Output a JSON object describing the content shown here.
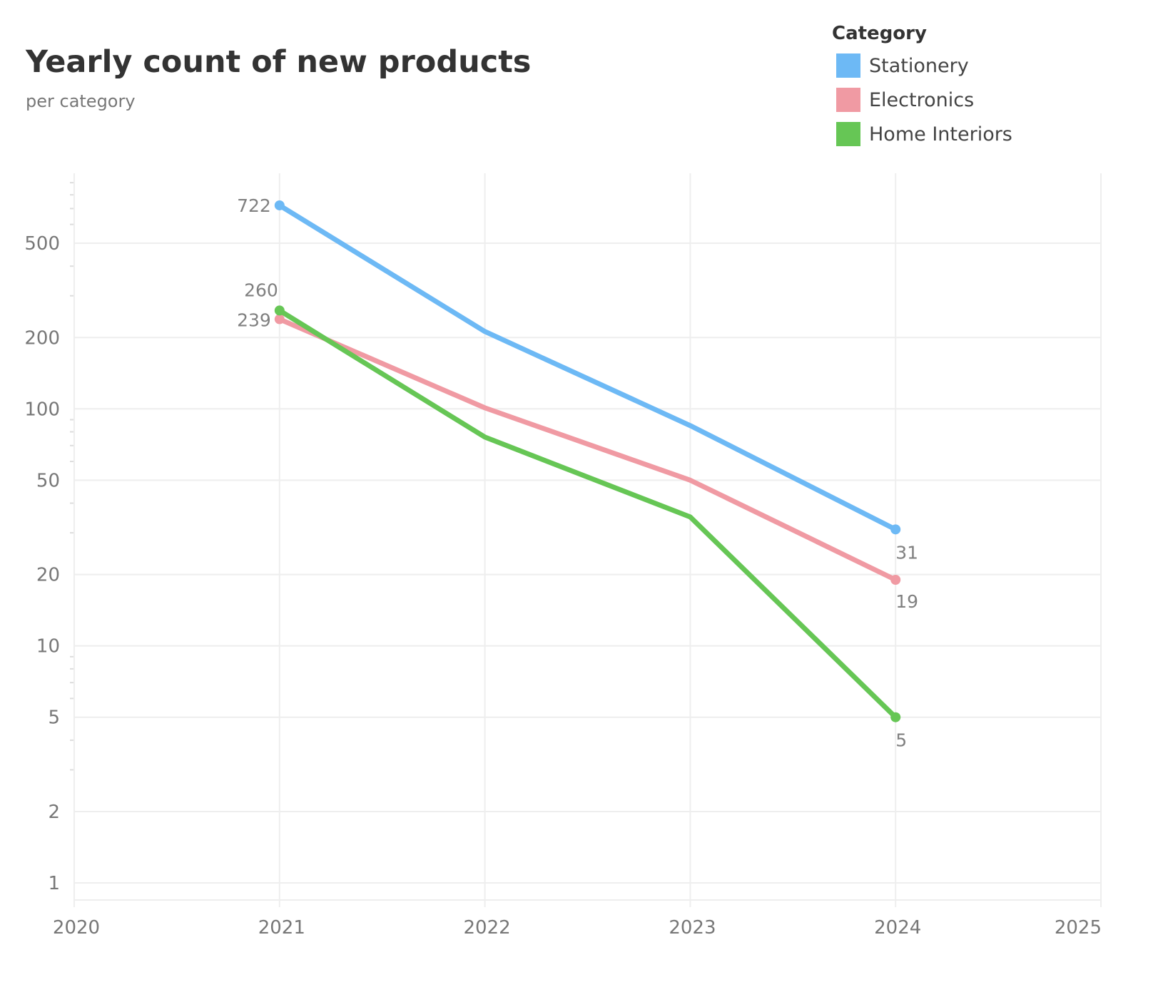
{
  "chart_data": {
    "type": "line",
    "title": "Yearly count of new products",
    "subtitle": "per category",
    "xlabel": "",
    "ylabel": "",
    "x": [
      2021,
      2022,
      2023,
      2024
    ],
    "xlim": [
      2020,
      2025
    ],
    "x_ticks": [
      "2020",
      "2021",
      "2022",
      "2023",
      "2024",
      "2025"
    ],
    "yscale": "log",
    "ylim": [
      0.8,
      1000
    ],
    "y_ticks": [
      1,
      2,
      5,
      10,
      20,
      50,
      100,
      200,
      500
    ],
    "y_tick_labels": [
      "1",
      "2",
      "5",
      "10",
      "20",
      "50",
      "100",
      "200",
      "500"
    ],
    "grid": true,
    "legend": {
      "title": "Category",
      "placement": "top-right"
    },
    "series": [
      {
        "name": "Stationery",
        "color": "#6db9f5",
        "values": [
          722,
          212,
          85,
          31
        ],
        "labels": [
          "722",
          null,
          null,
          "31"
        ]
      },
      {
        "name": "Electronics",
        "color": "#f09aa3",
        "values": [
          239,
          101,
          50,
          19
        ],
        "labels": [
          "239",
          null,
          null,
          "19"
        ]
      },
      {
        "name": "Home Interiors",
        "color": "#66c655",
        "values": [
          260,
          76,
          35,
          5
        ],
        "labels": [
          "260",
          null,
          null,
          "5"
        ]
      }
    ]
  }
}
